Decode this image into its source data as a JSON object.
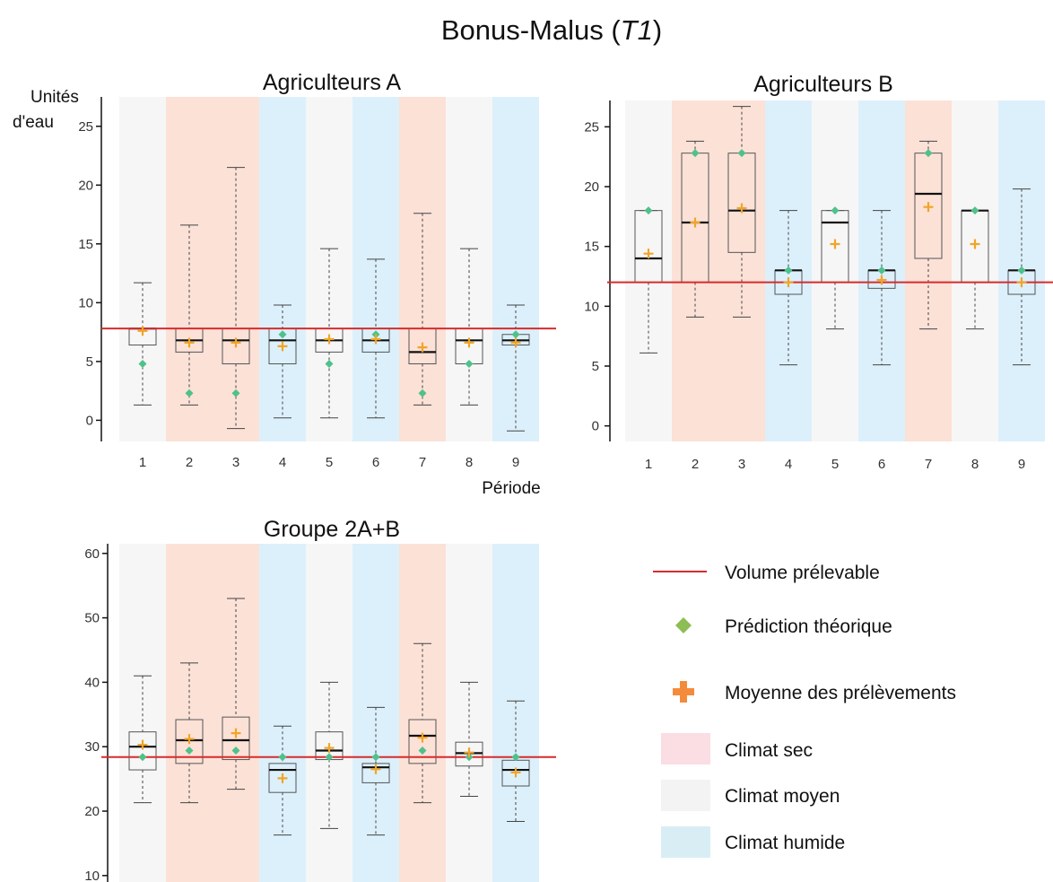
{
  "figure_title": {
    "main": "Bonus-Malus (",
    "italic": "T1",
    "close": ")"
  },
  "colors": {
    "dry": "#fce1d7",
    "mean": "#f6f6f6",
    "wet": "#dcf0fb",
    "volume_line": "#d62c2c",
    "prediction": "#4fc18a",
    "mean_marker": "#f0a528"
  },
  "legend": {
    "volume": "Volume prélevable",
    "prediction": "Prédiction théorique",
    "mean": "Moyenne des prélèvements",
    "dry": "Climat sec",
    "average": "Climat moyen",
    "wet": "Climat humide"
  },
  "chart_data": [
    {
      "type": "box",
      "title": "Agriculteurs A",
      "ylabel": "Unités d'eau",
      "xlabel": "Période",
      "categories": [
        "1",
        "2",
        "3",
        "4",
        "5",
        "6",
        "7",
        "8",
        "9"
      ],
      "climate": [
        "mean",
        "dry",
        "dry",
        "wet",
        "mean",
        "wet",
        "dry",
        "mean",
        "wet"
      ],
      "yticks": [
        0,
        5,
        10,
        15,
        20,
        25
      ],
      "ylim": [
        -1.8,
        27.5
      ],
      "volume_prelevable": 7.8,
      "boxes": [
        {
          "min": 1.3,
          "q1": 6.4,
          "median": 7.8,
          "q3": 7.8,
          "max": 11.7,
          "mean": 7.6,
          "prediction": 4.8
        },
        {
          "min": 1.3,
          "q1": 5.8,
          "median": 6.8,
          "q3": 7.8,
          "max": 16.6,
          "mean": 6.6,
          "prediction": 2.3
        },
        {
          "min": -0.7,
          "q1": 4.8,
          "median": 6.8,
          "q3": 7.8,
          "max": 21.5,
          "mean": 6.6,
          "prediction": 2.3
        },
        {
          "min": 0.2,
          "q1": 4.8,
          "median": 6.8,
          "q3": 7.8,
          "max": 9.8,
          "mean": 6.3,
          "prediction": 7.3
        },
        {
          "min": 0.2,
          "q1": 5.8,
          "median": 6.8,
          "q3": 7.8,
          "max": 14.6,
          "mean": 6.9,
          "prediction": 4.8
        },
        {
          "min": 0.2,
          "q1": 5.8,
          "median": 6.8,
          "q3": 7.8,
          "max": 13.7,
          "mean": 6.9,
          "prediction": 7.3
        },
        {
          "min": 1.3,
          "q1": 4.8,
          "median": 5.8,
          "q3": 7.8,
          "max": 17.6,
          "mean": 6.2,
          "prediction": 2.3
        },
        {
          "min": 1.3,
          "q1": 4.8,
          "median": 6.8,
          "q3": 7.8,
          "max": 14.6,
          "mean": 6.6,
          "prediction": 4.8
        },
        {
          "min": -0.9,
          "q1": 6.4,
          "median": 6.8,
          "q3": 7.3,
          "max": 9.8,
          "mean": 6.6,
          "prediction": 7.3
        }
      ]
    },
    {
      "type": "box",
      "title": "Agriculteurs B",
      "categories": [
        "1",
        "2",
        "3",
        "4",
        "5",
        "6",
        "7",
        "8",
        "9"
      ],
      "climate": [
        "mean",
        "dry",
        "dry",
        "wet",
        "mean",
        "wet",
        "dry",
        "mean",
        "wet"
      ],
      "yticks": [
        0,
        5,
        10,
        15,
        20,
        25
      ],
      "ylim": [
        -1.3,
        27.2
      ],
      "volume_prelevable": 12,
      "boxes": [
        {
          "min": 6.1,
          "q1": 12,
          "median": 14,
          "q3": 18,
          "max": 18,
          "mean": 14.4,
          "prediction": 18
        },
        {
          "min": 9.1,
          "q1": 12,
          "median": 17,
          "q3": 22.8,
          "max": 23.8,
          "mean": 17,
          "prediction": 22.8
        },
        {
          "min": 9.1,
          "q1": 14.5,
          "median": 18,
          "q3": 22.8,
          "max": 26.7,
          "mean": 18.2,
          "prediction": 22.8
        },
        {
          "min": 5.1,
          "q1": 11,
          "median": 13,
          "q3": 13,
          "max": 18,
          "mean": 12,
          "prediction": 13
        },
        {
          "min": 8.1,
          "q1": 12,
          "median": 17,
          "q3": 18,
          "max": 18,
          "mean": 15.2,
          "prediction": 18
        },
        {
          "min": 5.1,
          "q1": 11.5,
          "median": 13,
          "q3": 13,
          "max": 18,
          "mean": 12.2,
          "prediction": 13
        },
        {
          "min": 8.1,
          "q1": 14,
          "median": 19.4,
          "q3": 22.8,
          "max": 23.8,
          "mean": 18.3,
          "prediction": 22.8
        },
        {
          "min": 8.1,
          "q1": 12,
          "median": 18,
          "q3": 18,
          "max": 18,
          "mean": 15.2,
          "prediction": 18
        },
        {
          "min": 5.1,
          "q1": 11,
          "median": 13,
          "q3": 13,
          "max": 19.8,
          "mean": 12,
          "prediction": 13
        }
      ]
    },
    {
      "type": "box",
      "title": "Groupe 2A+B",
      "categories": [
        "1",
        "2",
        "3",
        "4",
        "5",
        "6",
        "7",
        "8",
        "9"
      ],
      "climate": [
        "mean",
        "dry",
        "dry",
        "wet",
        "mean",
        "wet",
        "dry",
        "mean",
        "wet"
      ],
      "yticks": [
        10,
        20,
        30,
        40,
        50,
        60
      ],
      "ylim": [
        9,
        61.5
      ],
      "volume_prelevable": 28.4,
      "boxes": [
        {
          "min": 21.3,
          "q1": 26.4,
          "median": 30,
          "q3": 32.3,
          "max": 41,
          "mean": 30.3,
          "prediction": 28.4
        },
        {
          "min": 21.3,
          "q1": 27.4,
          "median": 31,
          "q3": 34.2,
          "max": 43,
          "mean": 31.2,
          "prediction": 29.4
        },
        {
          "min": 23.4,
          "q1": 28,
          "median": 31,
          "q3": 34.6,
          "max": 53,
          "mean": 32.1,
          "prediction": 29.4
        },
        {
          "min": 16.3,
          "q1": 22.9,
          "median": 26.4,
          "q3": 27.4,
          "max": 33.2,
          "mean": 25.1,
          "prediction": 28.4
        },
        {
          "min": 17.3,
          "q1": 28,
          "median": 29.4,
          "q3": 32.3,
          "max": 40,
          "mean": 29.8,
          "prediction": 28.4
        },
        {
          "min": 16.3,
          "q1": 24.4,
          "median": 26.8,
          "q3": 27.4,
          "max": 36.1,
          "mean": 26.5,
          "prediction": 28.4
        },
        {
          "min": 21.3,
          "q1": 27.4,
          "median": 31.7,
          "q3": 34.2,
          "max": 46,
          "mean": 31.4,
          "prediction": 29.4
        },
        {
          "min": 22.3,
          "q1": 27,
          "median": 29,
          "q3": 30.7,
          "max": 40,
          "mean": 29.1,
          "prediction": 28.4
        },
        {
          "min": 18.4,
          "q1": 23.9,
          "median": 26.4,
          "q3": 27.9,
          "max": 37.1,
          "mean": 26,
          "prediction": 28.4
        }
      ]
    }
  ]
}
